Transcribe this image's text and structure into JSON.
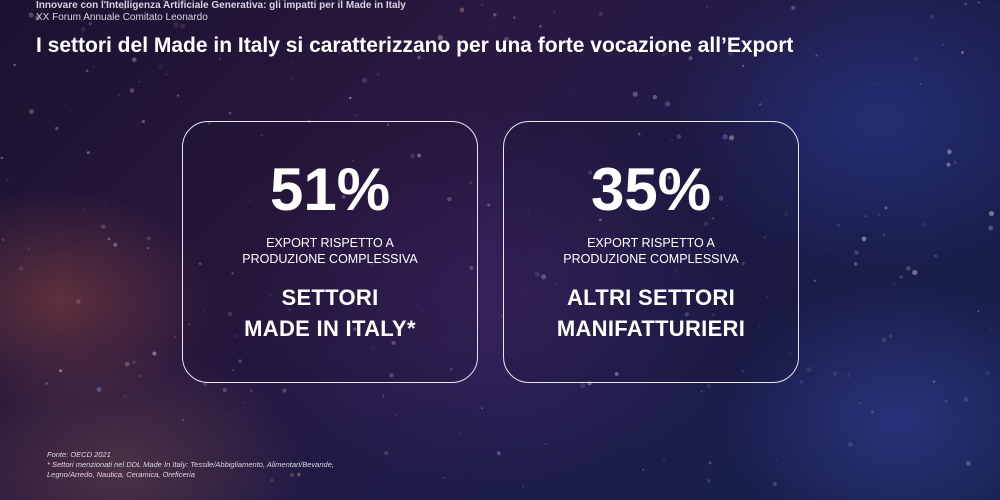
{
  "header": {
    "line1": "Innovare con l'Intelligenza Artificiale Generativa: gli impatti per il Made in Italy",
    "line2": "XX Forum Annuale Comitato Leonardo"
  },
  "title": "I settori del Made in Italy si caratterizzano per una forte vocazione all’Export",
  "cards": [
    {
      "percent": "51%",
      "desc_line1": "EXPORT RISPETTO A",
      "desc_line2": "PRODUZIONE COMPLESSIVA",
      "label_line1": "SETTORI",
      "label_line2": "MADE IN ITALY*"
    },
    {
      "percent": "35%",
      "desc_line1": "EXPORT RISPETTO A",
      "desc_line2": "PRODUZIONE COMPLESSIVA",
      "label_line1": "ALTRI SETTORI",
      "label_line2": "MANIFATTURIERI"
    }
  ],
  "footnote": {
    "source": "Fonte: OECD 2021",
    "note_line1": "* Settori menzionati nel DDL Made In Italy: Tessile/Abbigliamento, Alimentari/Bevande,",
    "note_line2": "Legno/Arredo, Nautica, Ceramica, Oreficeria"
  },
  "colors": {
    "text": "#ffffff",
    "card_border": "#e8e4f0",
    "background_dark": "#1a1230",
    "background_blue": "#1c1c4a"
  }
}
